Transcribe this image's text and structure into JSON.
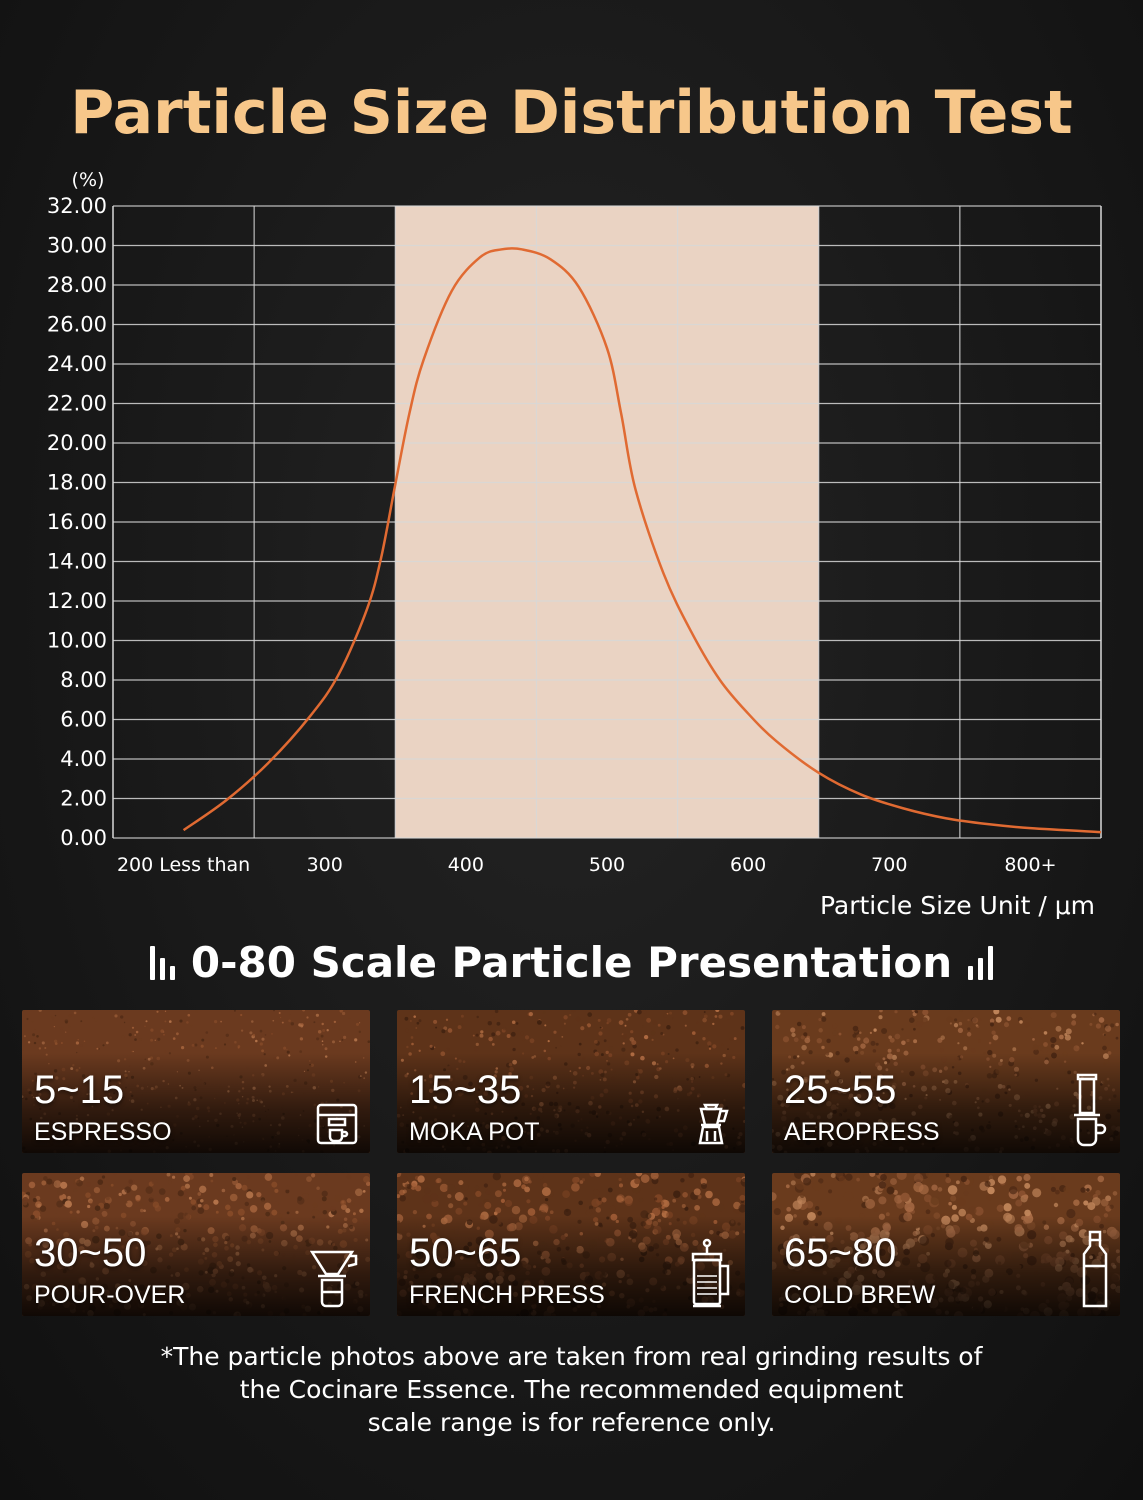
{
  "title": "Particle Size Distribution Test",
  "chart_data": {
    "type": "line",
    "ylabel": "(%)",
    "xlabel": "Particle Size Unit / μm",
    "ylim": [
      0,
      32
    ],
    "y_ticks": [
      "0.00",
      "2.00",
      "4.00",
      "6.00",
      "8.00",
      "10.00",
      "12.00",
      "14.00",
      "16.00",
      "18.00",
      "20.00",
      "22.00",
      "24.00",
      "26.00",
      "28.00",
      "30.00",
      "32.00"
    ],
    "x_range": [
      150,
      850
    ],
    "x_tick_labels": [
      {
        "x": 200,
        "label": "200 Less than"
      },
      {
        "x": 300,
        "label": "300"
      },
      {
        "x": 400,
        "label": "400"
      },
      {
        "x": 500,
        "label": "500"
      },
      {
        "x": 600,
        "label": "600"
      },
      {
        "x": 700,
        "label": "700"
      },
      {
        "x": 800,
        "label": "800+"
      }
    ],
    "x_gridlines": [
      250,
      350,
      450,
      550,
      650,
      750
    ],
    "highlight_range": [
      350,
      650
    ],
    "highlight_color": "#ead3c3",
    "line_color": "#e06a32",
    "series": [
      {
        "name": "distribution",
        "x": [
          200,
          230,
          260,
          290,
          310,
          330,
          340,
          350,
          360,
          370,
          390,
          410,
          425,
          440,
          460,
          480,
          500,
          510,
          520,
          540,
          560,
          580,
          600,
          620,
          650,
          680,
          710,
          740,
          770,
          800,
          850
        ],
        "y": [
          0.4,
          1.9,
          3.8,
          6.2,
          8.3,
          11.6,
          14.2,
          17.9,
          21.5,
          24.2,
          27.7,
          29.4,
          29.8,
          29.8,
          29.3,
          27.9,
          24.8,
          21.5,
          17.7,
          13.4,
          10.4,
          8.0,
          6.3,
          4.9,
          3.3,
          2.2,
          1.5,
          1.0,
          0.7,
          0.5,
          0.3
        ]
      }
    ]
  },
  "section_title": "0-80 Scale Particle Presentation",
  "tiles": [
    {
      "range": "5~15",
      "method": "ESPRESSO",
      "icon": "espresso-machine-icon"
    },
    {
      "range": "15~35",
      "method": "MOKA POT",
      "icon": "moka-pot-icon"
    },
    {
      "range": "25~55",
      "method": "AEROPRESS",
      "icon": "aeropress-icon"
    },
    {
      "range": "30~50",
      "method": "POUR-OVER",
      "icon": "pour-over-icon"
    },
    {
      "range": "50~65",
      "method": "FRENCH PRESS",
      "icon": "french-press-icon"
    },
    {
      "range": "65~80",
      "method": "COLD BREW",
      "icon": "cold-brew-bottle-icon"
    }
  ],
  "footnote": {
    "line1": "*The particle photos above are taken from real grinding results of",
    "line2": "the Cocinare Essence. The recommended equipment",
    "line3": "scale range is for reference only."
  }
}
